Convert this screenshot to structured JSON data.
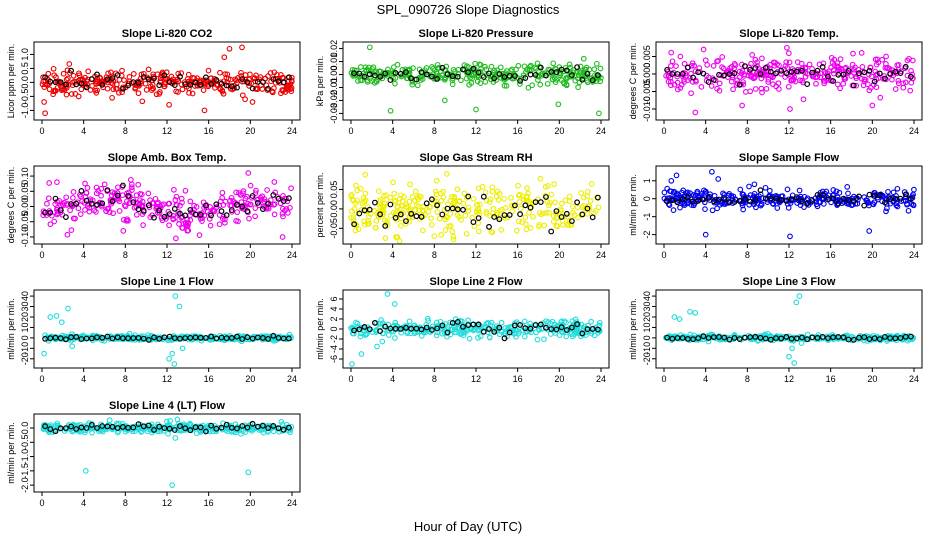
{
  "figure": {
    "suptitle": "SPL_090726  Slope Diagnostics",
    "xlabel": "Hour of Day (UTC)"
  },
  "colors": {
    "red": "#ee0000",
    "green": "#22bb22",
    "magenta": "#ee00ee",
    "yellow": "#eeee00",
    "blue": "#0000ee",
    "cyan": "#22dddd",
    "highlight": "#000000"
  },
  "chart_data": [
    {
      "type": "scatter",
      "title": "Slope Li-820 CO2",
      "ylabel": "Licor ppm per min.",
      "color": "red",
      "x_ticks": [
        0,
        4,
        8,
        12,
        16,
        20,
        24
      ],
      "xlim": [
        0,
        24
      ],
      "y_ticks": [
        "-1.0",
        "-0.5",
        "0.0",
        "0.5",
        "1.0"
      ],
      "ylim": [
        -1.2,
        1.3
      ],
      "spread": 0.2,
      "noise_scale": 0.25,
      "outliers": [
        [
          0.2,
          -0.7
        ],
        [
          0.3,
          -1.1
        ],
        [
          12.2,
          -0.8
        ],
        [
          15.6,
          -1.0
        ],
        [
          17.5,
          0.9
        ],
        [
          18.0,
          1.2
        ],
        [
          19.2,
          1.25
        ],
        [
          19.5,
          -0.6
        ]
      ],
      "pattern": "uniform"
    },
    {
      "type": "scatter",
      "title": "Slope Li-820 Pressure",
      "ylabel": "kPa per min.",
      "color": "green",
      "x_ticks": [
        0,
        4,
        8,
        12,
        16,
        20,
        24
      ],
      "xlim": [
        0,
        24
      ],
      "y_ticks": [
        "-0.03",
        "-0.02",
        "-0.01",
        "0.00",
        "0.01",
        "0.02"
      ],
      "ylim": [
        -0.032,
        0.022
      ],
      "spread": 0.004,
      "noise_scale": 0.005,
      "outliers": [
        [
          1.8,
          0.021
        ],
        [
          2.0,
          -0.005
        ],
        [
          3.8,
          -0.028
        ],
        [
          9.0,
          -0.02
        ],
        [
          12.0,
          -0.027
        ],
        [
          19.9,
          -0.023
        ],
        [
          23.8,
          -0.03
        ]
      ],
      "pattern": "uniform"
    },
    {
      "type": "scatter",
      "title": "Slope Li-820 Temp.",
      "ylabel": "degrees C per min.",
      "color": "magenta",
      "x_ticks": [
        0,
        4,
        8,
        12,
        16,
        20,
        24
      ],
      "xlim": [
        0,
        24
      ],
      "y_ticks": [
        "-0.010",
        "-0.005",
        "0.000",
        "0.005"
      ],
      "ylim": [
        -0.012,
        0.008
      ],
      "spread": 0.0025,
      "noise_scale": 0.002,
      "outliers": [
        [
          3.0,
          -0.011
        ],
        [
          3.8,
          0.007
        ],
        [
          7.5,
          -0.009
        ],
        [
          11.8,
          0.0075
        ],
        [
          12.1,
          -0.01
        ],
        [
          20.0,
          -0.009
        ]
      ],
      "pattern": "uniform"
    },
    {
      "type": "scatter",
      "title": "Slope Amb. Box Temp.",
      "ylabel": "degrees C per min.",
      "color": "magenta",
      "x_ticks": [
        0,
        4,
        8,
        12,
        16,
        20,
        24
      ],
      "xlim": [
        0,
        24
      ],
      "y_ticks": [
        "-0.10",
        "-0.05",
        "0.00",
        "0.05",
        "0.10"
      ],
      "ylim": [
        -0.11,
        0.12
      ],
      "spread": 0.03,
      "noise_scale": 0.025,
      "outliers": [
        [
          23.1,
          -0.1
        ],
        [
          19.8,
          0.11
        ],
        [
          7.8,
          -0.08
        ]
      ],
      "pattern": "wave"
    },
    {
      "type": "scatter",
      "title": "Slope Gas Stream RH",
      "ylabel": "percent per min.",
      "color": "yellow",
      "x_ticks": [
        0,
        4,
        8,
        12,
        16,
        20,
        24
      ],
      "xlim": [
        0,
        24
      ],
      "y_ticks": [
        "-0.05",
        "0.00",
        "0.05"
      ],
      "ylim": [
        -0.08,
        0.1
      ],
      "spread": 0.03,
      "noise_scale": 0.02,
      "outliers": [
        [
          9.2,
          0.09
        ],
        [
          3.3,
          -0.075
        ],
        [
          8.0,
          -0.07
        ]
      ],
      "pattern": "uniform"
    },
    {
      "type": "scatter",
      "title": "Slope Sample Flow",
      "ylabel": "ml/min per min.",
      "color": "blue",
      "x_ticks": [
        0,
        4,
        8,
        12,
        16,
        20,
        24
      ],
      "xlim": [
        0,
        24
      ],
      "y_ticks": [
        "-2",
        "-1",
        "0",
        "1"
      ],
      "ylim": [
        -2.3,
        1.6
      ],
      "spread": 0.25,
      "noise_scale": 0.25,
      "outliers": [
        [
          4.0,
          -2.0
        ],
        [
          4.6,
          1.5
        ],
        [
          12.1,
          -2.1
        ],
        [
          19.7,
          -1.8
        ],
        [
          0.7,
          1.0
        ],
        [
          1.2,
          1.3
        ],
        [
          5.2,
          1.1
        ]
      ],
      "pattern": "uniform"
    },
    {
      "type": "scatter",
      "title": "Slope Line 1 Flow",
      "ylabel": "ml/min per min.",
      "color": "cyan",
      "x_ticks": [
        0,
        4,
        8,
        12,
        16,
        20,
        24
      ],
      "xlim": [
        0,
        24
      ],
      "y_ticks": [
        "-20",
        "-10",
        "0",
        "10",
        "20",
        "30",
        "40"
      ],
      "ylim": [
        -25,
        42
      ],
      "spread": 1.2,
      "noise_scale": 1.0,
      "outliers": [
        [
          0.2,
          -15
        ],
        [
          0.8,
          20
        ],
        [
          1.4,
          21
        ],
        [
          1.9,
          15
        ],
        [
          2.5,
          28
        ],
        [
          2.9,
          -8
        ],
        [
          12.2,
          -20
        ],
        [
          12.5,
          -15
        ],
        [
          12.8,
          40
        ],
        [
          13.2,
          30
        ],
        [
          13.5,
          -10
        ],
        [
          12.7,
          -25
        ]
      ],
      "pattern": "uniform"
    },
    {
      "type": "scatter",
      "title": "Slope Line 2 Flow",
      "ylabel": "ml/min per min.",
      "color": "cyan",
      "x_ticks": [
        0,
        4,
        8,
        12,
        16,
        20,
        24
      ],
      "xlim": [
        0,
        24
      ],
      "y_ticks": [
        "-6",
        "-4",
        "-2",
        "0",
        "2",
        "4",
        "6"
      ],
      "ylim": [
        -7,
        7
      ],
      "spread": 0.9,
      "noise_scale": 0.8,
      "outliers": [
        [
          0.1,
          -7
        ],
        [
          1.0,
          -5
        ],
        [
          2.5,
          -3.5
        ],
        [
          3.5,
          7
        ],
        [
          4.2,
          5
        ],
        [
          3.0,
          -2.5
        ]
      ],
      "pattern": "uniform"
    },
    {
      "type": "scatter",
      "title": "Slope Line 3 Flow",
      "ylabel": "ml/min per min.",
      "color": "cyan",
      "x_ticks": [
        0,
        4,
        8,
        12,
        16,
        20,
        24
      ],
      "xlim": [
        0,
        24
      ],
      "y_ticks": [
        "-20",
        "-10",
        "0",
        "10",
        "20",
        "30",
        "40"
      ],
      "ylim": [
        -25,
        42
      ],
      "spread": 1.2,
      "noise_scale": 1.0,
      "outliers": [
        [
          1.0,
          20
        ],
        [
          1.5,
          18
        ],
        [
          2.5,
          25
        ],
        [
          3.0,
          24
        ],
        [
          12.0,
          -18
        ],
        [
          12.3,
          -10
        ],
        [
          12.7,
          34
        ],
        [
          13.0,
          40
        ],
        [
          12.5,
          -24
        ],
        [
          13.2,
          -5
        ]
      ],
      "pattern": "uniform"
    },
    {
      "type": "scatter",
      "title": "Slope Line 4 (LT) Flow",
      "ylabel": "ml/min per min.",
      "color": "cyan",
      "x_ticks": [
        0,
        4,
        8,
        12,
        16,
        20,
        24
      ],
      "xlim": [
        0,
        24
      ],
      "y_ticks": [
        "-2.0",
        "-1.5",
        "-1.0",
        "-0.5",
        "0.0"
      ],
      "ylim": [
        -2.1,
        0.35
      ],
      "spread": 0.08,
      "noise_scale": 0.08,
      "outliers": [
        [
          4.2,
          -1.5
        ],
        [
          12.1,
          -0.2
        ],
        [
          12.5,
          -2.0
        ],
        [
          12.3,
          0.25
        ],
        [
          13.0,
          0.3
        ],
        [
          19.8,
          -1.55
        ],
        [
          12.8,
          -0.35
        ]
      ],
      "pattern": "uniform"
    }
  ]
}
